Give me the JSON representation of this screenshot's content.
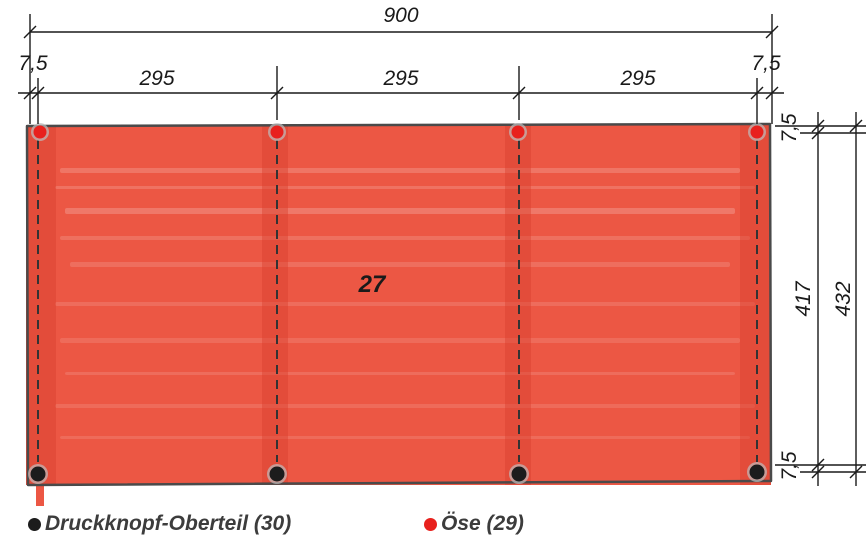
{
  "dimensions": {
    "total_width": "900",
    "margin_left": "7,5",
    "margin_right": "7,5",
    "segments": [
      "295",
      "295",
      "295"
    ],
    "margin_top": "7,5",
    "margin_bottom": "7,5",
    "inner_height": "417",
    "total_height": "432"
  },
  "panel": {
    "label": "27",
    "fill_color": "#ec5744"
  },
  "legend": {
    "snap_label": "Druckknopf-Oberteil (30)",
    "snap_color": "#1c1c1c",
    "eyelet_label": "Öse (29)",
    "eyelet_color": "#e8211d"
  },
  "markers": {
    "top_row": "eyelet",
    "bottom_row": "snap"
  }
}
